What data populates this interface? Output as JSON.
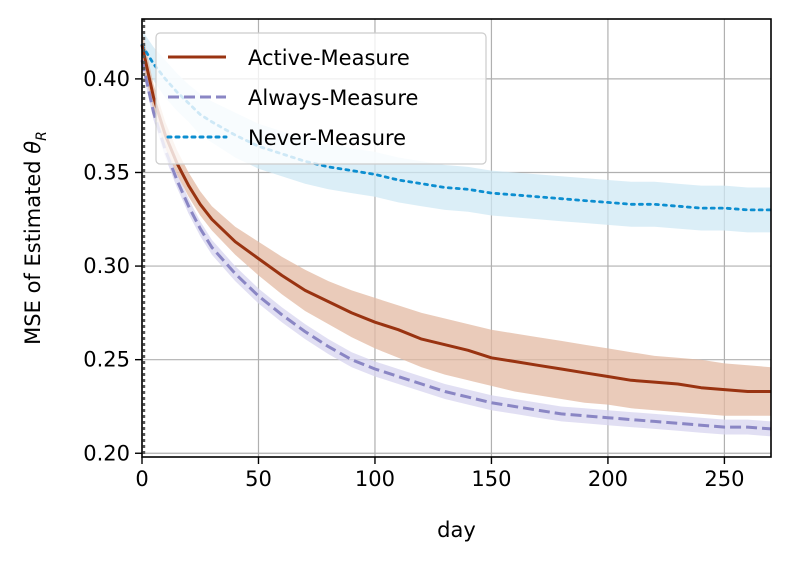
{
  "chart_data": {
    "type": "line",
    "xlabel": "day",
    "ylabel_main": "MSE of Estimated ",
    "ylabel_symbol": "θ",
    "ylabel_subscript": "R",
    "xlim": [
      0,
      270
    ],
    "ylim": [
      0.198,
      0.432
    ],
    "xticks": [
      0,
      50,
      100,
      150,
      200,
      250
    ],
    "yticks": [
      0.2,
      0.25,
      0.3,
      0.35,
      0.4
    ],
    "xtick_labels": [
      "0",
      "50",
      "100",
      "150",
      "200",
      "250"
    ],
    "ytick_labels": [
      "0.20",
      "0.25",
      "0.30",
      "0.35",
      "0.40"
    ],
    "grid": true,
    "legend_position": "top-left",
    "series": [
      {
        "name": "Active-Measure",
        "color": "#993311",
        "band_color": "#e3b9a3",
        "style": "solid",
        "x": [
          0,
          5,
          10,
          15,
          20,
          25,
          30,
          40,
          50,
          60,
          70,
          80,
          90,
          100,
          110,
          120,
          130,
          140,
          150,
          160,
          170,
          180,
          190,
          200,
          210,
          220,
          230,
          240,
          250,
          260,
          270
        ],
        "y": [
          0.418,
          0.39,
          0.37,
          0.355,
          0.343,
          0.333,
          0.325,
          0.313,
          0.304,
          0.295,
          0.287,
          0.281,
          0.275,
          0.27,
          0.266,
          0.261,
          0.258,
          0.255,
          0.251,
          0.249,
          0.247,
          0.245,
          0.243,
          0.241,
          0.239,
          0.238,
          0.237,
          0.235,
          0.234,
          0.233,
          0.233
        ],
        "band_lower": [
          0.41,
          0.383,
          0.363,
          0.349,
          0.337,
          0.327,
          0.319,
          0.306,
          0.295,
          0.285,
          0.276,
          0.269,
          0.262,
          0.256,
          0.251,
          0.246,
          0.242,
          0.239,
          0.236,
          0.233,
          0.231,
          0.229,
          0.227,
          0.226,
          0.224,
          0.223,
          0.222,
          0.221,
          0.22,
          0.22,
          0.22
        ],
        "band_upper": [
          0.426,
          0.397,
          0.377,
          0.362,
          0.35,
          0.34,
          0.332,
          0.321,
          0.313,
          0.305,
          0.298,
          0.292,
          0.287,
          0.283,
          0.279,
          0.275,
          0.272,
          0.269,
          0.266,
          0.264,
          0.262,
          0.26,
          0.258,
          0.256,
          0.254,
          0.252,
          0.251,
          0.25,
          0.248,
          0.247,
          0.246
        ]
      },
      {
        "name": "Always-Measure",
        "color": "#8a86c4",
        "band_color": "#d7d4ef",
        "style": "dashed",
        "x": [
          0,
          5,
          10,
          15,
          20,
          25,
          30,
          40,
          50,
          60,
          70,
          80,
          90,
          100,
          110,
          120,
          130,
          140,
          150,
          160,
          170,
          180,
          190,
          200,
          210,
          220,
          230,
          240,
          250,
          260,
          270
        ],
        "y": [
          0.41,
          0.382,
          0.362,
          0.346,
          0.332,
          0.32,
          0.31,
          0.296,
          0.284,
          0.274,
          0.265,
          0.257,
          0.25,
          0.245,
          0.241,
          0.237,
          0.233,
          0.23,
          0.227,
          0.225,
          0.223,
          0.221,
          0.22,
          0.219,
          0.218,
          0.217,
          0.216,
          0.215,
          0.214,
          0.214,
          0.213
        ],
        "band_lower": [
          0.406,
          0.378,
          0.358,
          0.342,
          0.328,
          0.316,
          0.306,
          0.292,
          0.28,
          0.27,
          0.261,
          0.253,
          0.246,
          0.241,
          0.237,
          0.233,
          0.229,
          0.226,
          0.223,
          0.221,
          0.219,
          0.217,
          0.216,
          0.215,
          0.214,
          0.213,
          0.212,
          0.211,
          0.21,
          0.21,
          0.209
        ],
        "band_upper": [
          0.414,
          0.386,
          0.366,
          0.35,
          0.336,
          0.324,
          0.314,
          0.3,
          0.288,
          0.278,
          0.269,
          0.261,
          0.254,
          0.249,
          0.245,
          0.241,
          0.237,
          0.234,
          0.231,
          0.229,
          0.227,
          0.225,
          0.224,
          0.223,
          0.222,
          0.221,
          0.22,
          0.219,
          0.218,
          0.218,
          0.217
        ]
      },
      {
        "name": "Never-Measure",
        "color": "#0c8ed0",
        "band_color": "#cfe8f4",
        "style": "dotted",
        "x": [
          0,
          5,
          10,
          15,
          20,
          25,
          30,
          40,
          50,
          60,
          70,
          80,
          90,
          100,
          110,
          120,
          130,
          140,
          150,
          160,
          170,
          180,
          190,
          200,
          210,
          220,
          230,
          240,
          250,
          260,
          270
        ],
        "y": [
          0.418,
          0.408,
          0.4,
          0.393,
          0.387,
          0.381,
          0.377,
          0.37,
          0.364,
          0.36,
          0.356,
          0.353,
          0.351,
          0.349,
          0.346,
          0.344,
          0.342,
          0.341,
          0.339,
          0.338,
          0.337,
          0.336,
          0.335,
          0.334,
          0.333,
          0.333,
          0.332,
          0.331,
          0.331,
          0.33,
          0.33
        ],
        "band_lower": [
          0.41,
          0.399,
          0.39,
          0.383,
          0.377,
          0.37,
          0.366,
          0.358,
          0.352,
          0.348,
          0.344,
          0.341,
          0.339,
          0.337,
          0.334,
          0.332,
          0.33,
          0.329,
          0.327,
          0.326,
          0.325,
          0.324,
          0.323,
          0.322,
          0.321,
          0.321,
          0.32,
          0.319,
          0.319,
          0.318,
          0.318
        ],
        "band_upper": [
          0.426,
          0.417,
          0.41,
          0.403,
          0.397,
          0.392,
          0.388,
          0.382,
          0.376,
          0.372,
          0.368,
          0.365,
          0.363,
          0.361,
          0.358,
          0.356,
          0.354,
          0.353,
          0.351,
          0.35,
          0.349,
          0.348,
          0.347,
          0.346,
          0.345,
          0.345,
          0.344,
          0.343,
          0.343,
          0.342,
          0.342
        ]
      }
    ]
  }
}
